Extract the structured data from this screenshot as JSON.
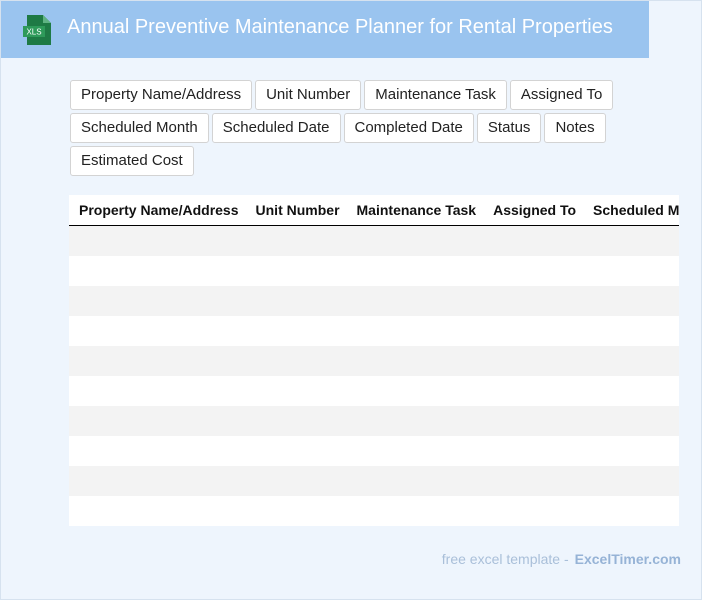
{
  "header": {
    "icon_label": "XLS",
    "title": "Annual Preventive Maintenance Planner for Rental Properties"
  },
  "fields": [
    "Property Name/Address",
    "Unit Number",
    "Maintenance Task",
    "Assigned To",
    "Scheduled Month",
    "Scheduled Date",
    "Completed Date",
    "Status",
    "Notes",
    "Estimated Cost"
  ],
  "table": {
    "columns": [
      "Property Name/Address",
      "Unit Number",
      "Maintenance Task",
      "Assigned To",
      "Scheduled Month"
    ]
  },
  "footer": {
    "text": "free excel template -",
    "brand": "ExcelTimer.com"
  }
}
